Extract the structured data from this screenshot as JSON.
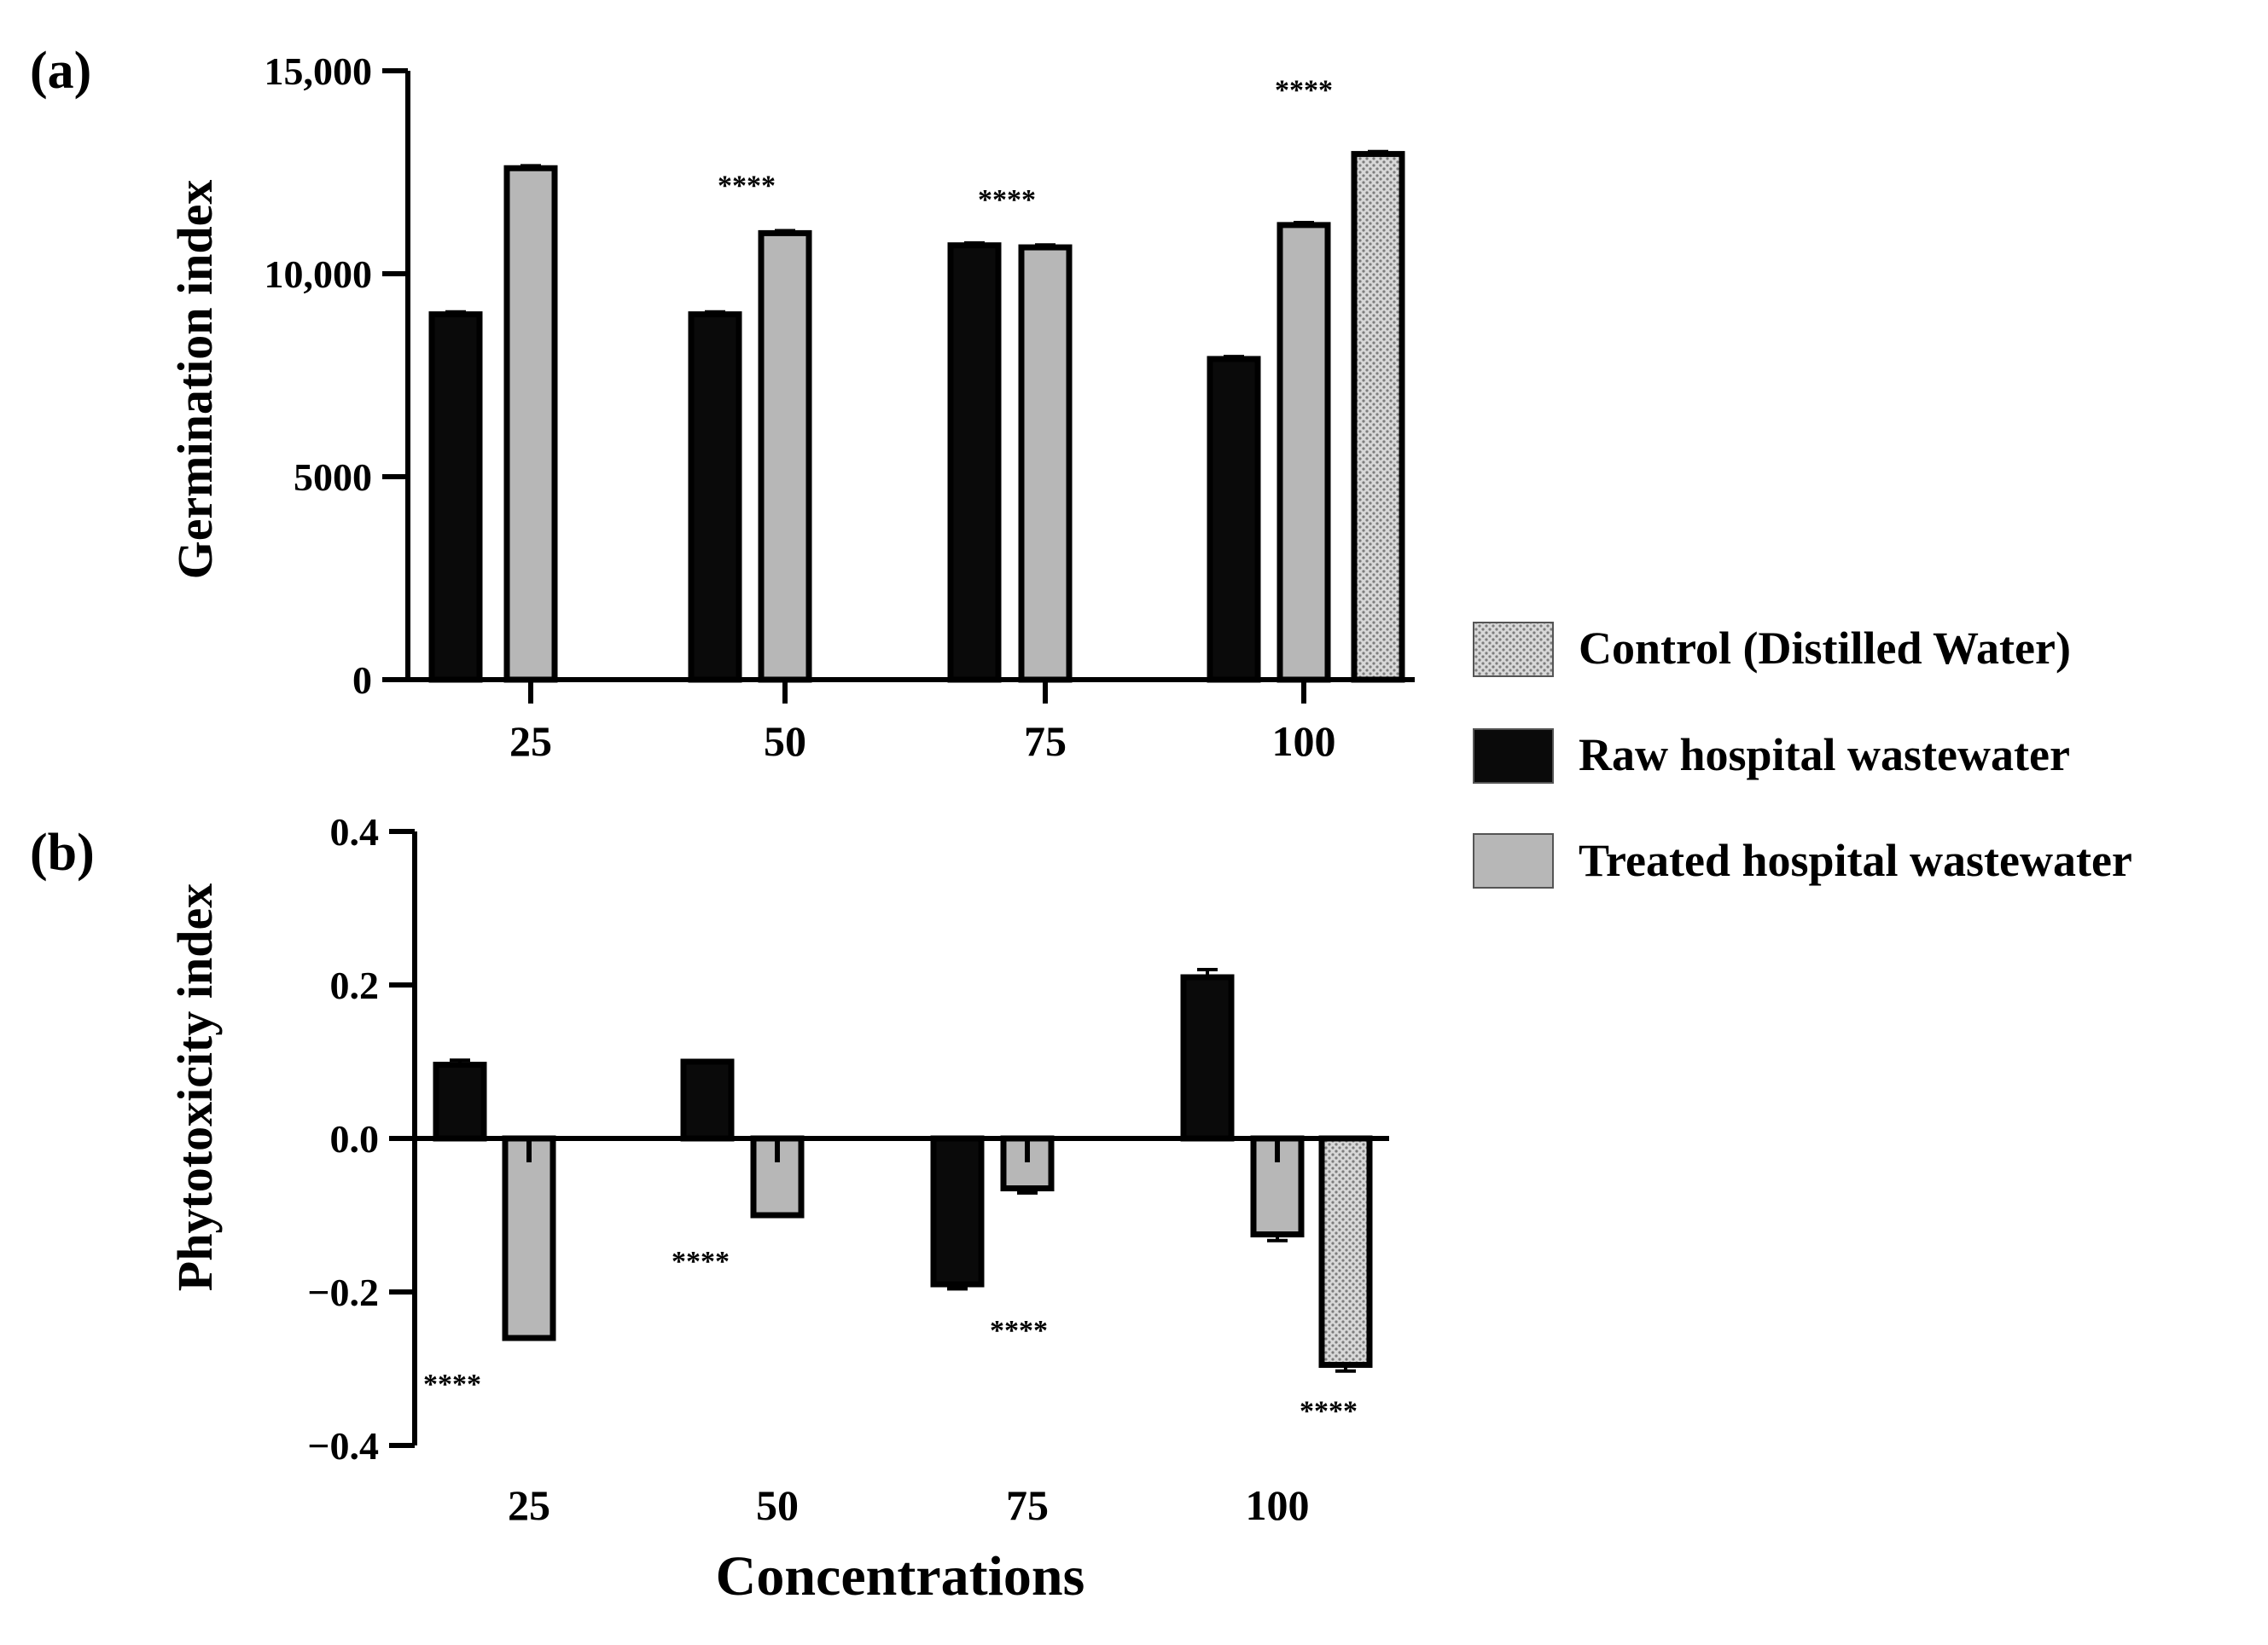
{
  "colors": {
    "raw": "#0a0a0a",
    "treated": "#b7b7b7",
    "control_base": "#d8d8d8",
    "control_dot": "#7c7c7c",
    "axis": "#000000",
    "text": "#000000"
  },
  "legend": {
    "items": [
      {
        "key": "control",
        "label": "Control (Distilled Water)"
      },
      {
        "key": "raw",
        "label": "Raw hospital wastewater"
      },
      {
        "key": "treated",
        "label": "Treated hospital wastewater"
      }
    ]
  },
  "chart_data": [
    {
      "panel_label": "(a)",
      "type": "bar",
      "title": "",
      "xlabel": "",
      "ylabel": "Germination index",
      "ylim": [
        0,
        15000
      ],
      "yticks": [
        0,
        5000,
        10000,
        15000
      ],
      "ytick_labels": [
        "0",
        "5000",
        "10,000",
        "15,000"
      ],
      "categories": [
        "25",
        "50",
        "75",
        "100"
      ],
      "series": [
        {
          "name": "Raw hospital wastewater",
          "key": "raw",
          "values": [
            9000,
            9000,
            10700,
            7900
          ],
          "errors": [
            60,
            60,
            60,
            60
          ]
        },
        {
          "name": "Treated hospital wastewater",
          "key": "treated",
          "values": [
            12600,
            11000,
            10650,
            11200
          ],
          "errors": [
            60,
            60,
            60,
            60
          ]
        }
      ],
      "control": {
        "name": "Control (Distilled Water)",
        "category": "100",
        "value": 12950,
        "error": 60
      },
      "significance": [
        {
          "category": "50",
          "label": "****"
        },
        {
          "category": "75",
          "label": "****"
        },
        {
          "category": "100",
          "label": "****"
        }
      ]
    },
    {
      "panel_label": "(b)",
      "type": "bar",
      "title": "",
      "xlabel": "Concentrations",
      "ylabel": "Phytotoxicity index",
      "ylim": [
        -0.4,
        0.4
      ],
      "yticks": [
        -0.4,
        -0.2,
        0.0,
        0.2,
        0.4
      ],
      "ytick_labels": [
        "−0.4",
        "−0.2",
        "0.0",
        "0.2",
        "0.4"
      ],
      "categories": [
        "25",
        "50",
        "75",
        "100"
      ],
      "series": [
        {
          "name": "Raw hospital wastewater",
          "key": "raw",
          "values": [
            0.096,
            0.1,
            -0.19,
            0.21
          ],
          "errors": [
            0.006,
            0.0,
            0.006,
            0.01
          ]
        },
        {
          "name": "Treated hospital wastewater",
          "key": "treated",
          "values": [
            -0.26,
            -0.1,
            -0.065,
            -0.125
          ],
          "errors": [
            0.0,
            0.0,
            0.006,
            0.008
          ]
        }
      ],
      "control": {
        "name": "Control (Distilled Water)",
        "category": "100",
        "value": -0.295,
        "error": 0.008
      },
      "significance": [
        {
          "category": "25",
          "label": "****"
        },
        {
          "category": "50",
          "label": "****"
        },
        {
          "category": "75",
          "label": "****"
        },
        {
          "category": "100",
          "label": "****"
        }
      ]
    }
  ]
}
